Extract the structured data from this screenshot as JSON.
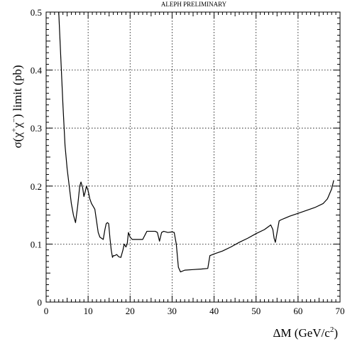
{
  "chart_data": {
    "type": "line",
    "title": "ALEPH PRELIMINARY",
    "ylabel_parts": [
      "σ(χ",
      "+",
      "χ",
      "−",
      ") limit (pb)"
    ],
    "xlabel_parts": [
      "ΔM (GeV/c",
      "2",
      ")"
    ],
    "xlim": [
      0,
      70
    ],
    "ylim": [
      0,
      0.5
    ],
    "x_ticks": [
      0,
      10,
      20,
      30,
      40,
      50,
      60,
      70
    ],
    "y_ticks": [
      0,
      0.1,
      0.2,
      0.3,
      0.4,
      0.5
    ],
    "x_tick_labels": [
      "0",
      "10",
      "20",
      "30",
      "40",
      "50",
      "60",
      "70"
    ],
    "y_tick_labels": [
      "0",
      "0.1",
      "0.2",
      "0.3",
      "0.4",
      "0.5"
    ],
    "grid": true,
    "series": [
      {
        "x": [
          3.0,
          3.5,
          4.0,
          4.5,
          5.0,
          5.5,
          6.0,
          6.5,
          7.0,
          7.5,
          8.0,
          8.3,
          8.7,
          9.0,
          9.3,
          9.6,
          10.0,
          10.4,
          10.8,
          11.2,
          11.6,
          12.0,
          12.4,
          12.8,
          13.2,
          13.6,
          14.0,
          14.3,
          14.6,
          14.9,
          15.2,
          15.5,
          15.8,
          16.0,
          16.3,
          16.8,
          17.3,
          17.8,
          18.3,
          18.6,
          19.0,
          19.3,
          19.6,
          20.0,
          20.5,
          21.0,
          22.0,
          23.0,
          24.0,
          25.0,
          26.0,
          26.5,
          27.0,
          27.5,
          28.0,
          29.0,
          30.0,
          30.5,
          31.0,
          31.5,
          32.0,
          33.0,
          35.0,
          37.0,
          38.5,
          39.0,
          40.0,
          42.0,
          44.0,
          46.0,
          48.0,
          50.0,
          52.0,
          53.5,
          54.0,
          54.3,
          54.6,
          55.0,
          55.5,
          56.0,
          57.0,
          58.0,
          60.0,
          62.0,
          64.0,
          66.0,
          67.0,
          68.0,
          68.5
        ],
        "y": [
          0.5,
          0.42,
          0.34,
          0.27,
          0.23,
          0.2,
          0.17,
          0.15,
          0.137,
          0.165,
          0.2,
          0.207,
          0.197,
          0.182,
          0.19,
          0.2,
          0.192,
          0.178,
          0.17,
          0.165,
          0.16,
          0.14,
          0.12,
          0.112,
          0.11,
          0.108,
          0.125,
          0.135,
          0.137,
          0.135,
          0.11,
          0.09,
          0.077,
          0.08,
          0.08,
          0.082,
          0.078,
          0.077,
          0.09,
          0.1,
          0.095,
          0.1,
          0.12,
          0.112,
          0.108,
          0.108,
          0.108,
          0.108,
          0.122,
          0.122,
          0.122,
          0.12,
          0.105,
          0.12,
          0.122,
          0.12,
          0.121,
          0.12,
          0.1,
          0.06,
          0.052,
          0.055,
          0.056,
          0.057,
          0.058,
          0.08,
          0.083,
          0.088,
          0.095,
          0.103,
          0.11,
          0.118,
          0.125,
          0.133,
          0.125,
          0.11,
          0.103,
          0.12,
          0.14,
          0.142,
          0.145,
          0.148,
          0.153,
          0.158,
          0.163,
          0.17,
          0.178,
          0.195,
          0.21
        ]
      }
    ]
  }
}
